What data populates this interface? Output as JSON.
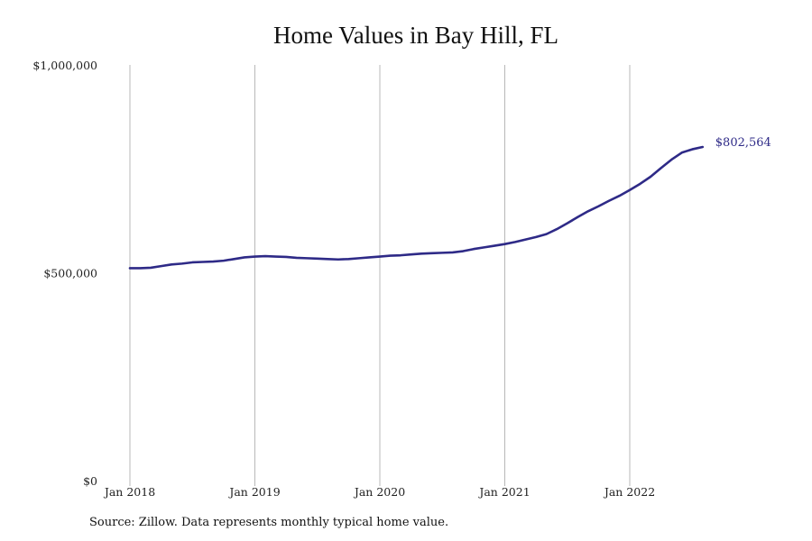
{
  "chart_data": {
    "type": "line",
    "title": "Home Values in Bay Hill, FL",
    "xlabel": "",
    "ylabel": "",
    "x_ticks": [
      "Jan 2018",
      "Jan 2019",
      "Jan 2020",
      "Jan 2021",
      "Jan 2022"
    ],
    "y_ticks": [
      {
        "value": 0,
        "label": "$0"
      },
      {
        "value": 500000,
        "label": "$500,000"
      },
      {
        "value": 1000000,
        "label": "$1,000,000"
      }
    ],
    "ylim": [
      0,
      1000000
    ],
    "xlim": [
      "2018-01",
      "2022-08"
    ],
    "grid": "vertical",
    "line_color": "#2e2a87",
    "series": [
      {
        "x": [
          "2018-01",
          "2018-02",
          "2018-03",
          "2018-04",
          "2018-05",
          "2018-06",
          "2018-07",
          "2018-08",
          "2018-09",
          "2018-10",
          "2018-11",
          "2018-12",
          "2019-01",
          "2019-02",
          "2019-03",
          "2019-04",
          "2019-05",
          "2019-06",
          "2019-07",
          "2019-08",
          "2019-09",
          "2019-10",
          "2019-11",
          "2019-12",
          "2020-01",
          "2020-02",
          "2020-03",
          "2020-04",
          "2020-05",
          "2020-06",
          "2020-07",
          "2020-08",
          "2020-09",
          "2020-10",
          "2020-11",
          "2020-12",
          "2021-01",
          "2021-02",
          "2021-03",
          "2021-04",
          "2021-05",
          "2021-06",
          "2021-07",
          "2021-08",
          "2021-09",
          "2021-10",
          "2021-11",
          "2021-12",
          "2022-01",
          "2022-02",
          "2022-03",
          "2022-04",
          "2022-05",
          "2022-06",
          "2022-07",
          "2022-08"
        ],
        "values": [
          511000,
          511000,
          512000,
          516000,
          520000,
          522000,
          525000,
          526000,
          527000,
          529000,
          533000,
          537000,
          539000,
          540000,
          539000,
          538000,
          536000,
          535000,
          534000,
          533000,
          532000,
          533000,
          535000,
          537000,
          539000,
          541000,
          542000,
          544000,
          546000,
          547000,
          548000,
          549000,
          552000,
          557000,
          561000,
          565000,
          569000,
          574000,
          580000,
          586000,
          593000,
          605000,
          619000,
          634000,
          648000,
          660000,
          673000,
          685000,
          699000,
          714000,
          731000,
          752000,
          772000,
          789000,
          797000,
          802564
        ]
      }
    ],
    "end_label": "$802,564"
  },
  "source_note": "Source: Zillow. Data represents monthly typical home value."
}
